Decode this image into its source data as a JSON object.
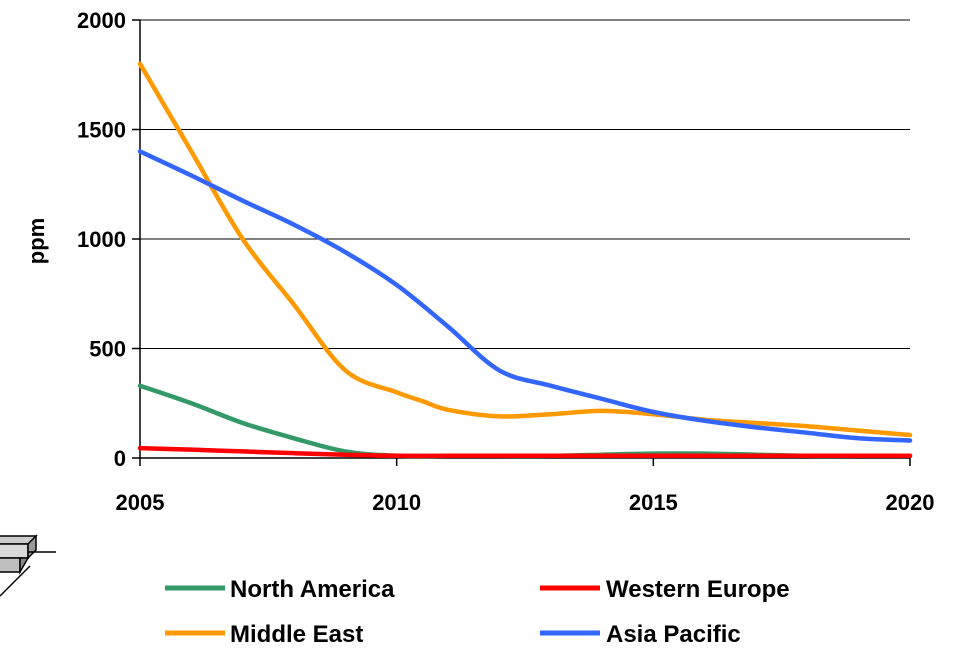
{
  "chart_data": {
    "type": "line",
    "ylabel": "ppm",
    "xlabel": "",
    "xlim": [
      2005,
      2020
    ],
    "ylim": [
      0,
      2000
    ],
    "xticks": [
      "2005",
      "2010",
      "2015",
      "2020"
    ],
    "yticks": [
      "0",
      "500",
      "1000",
      "1500",
      "2000"
    ],
    "grid": "horizontal",
    "legend_position": "bottom",
    "series": [
      {
        "name": "North America",
        "color": "#339966",
        "x": [
          2005,
          2006,
          2007,
          2008,
          2009,
          2010,
          2011,
          2012,
          2013,
          2014,
          2015,
          2016,
          2017,
          2018,
          2019,
          2020
        ],
        "y": [
          330,
          250,
          160,
          90,
          30,
          10,
          10,
          10,
          10,
          15,
          20,
          20,
          15,
          10,
          10,
          10
        ]
      },
      {
        "name": "Western Europe",
        "color": "#ff0000",
        "x": [
          2005,
          2006,
          2007,
          2008,
          2009,
          2010,
          2011,
          2012,
          2013,
          2014,
          2015,
          2016,
          2017,
          2018,
          2019,
          2020
        ],
        "y": [
          45,
          38,
          30,
          22,
          15,
          10,
          10,
          10,
          10,
          10,
          10,
          10,
          10,
          10,
          10,
          10
        ]
      },
      {
        "name": "Middle East",
        "color": "#ff9900",
        "x": [
          2005,
          2006,
          2007,
          2008,
          2009,
          2010,
          2010.5,
          2011,
          2012,
          2013,
          2014,
          2015,
          2016,
          2017,
          2018,
          2019,
          2020
        ],
        "y": [
          1800,
          1400,
          1000,
          700,
          400,
          300,
          260,
          220,
          190,
          200,
          215,
          200,
          175,
          160,
          145,
          125,
          105
        ]
      },
      {
        "name": "Asia Pacific",
        "color": "#3366ff",
        "x": [
          2005,
          2006,
          2007,
          2008,
          2009,
          2010,
          2011,
          2012,
          2013,
          2014,
          2015,
          2016,
          2017,
          2018,
          2019,
          2020
        ],
        "y": [
          1400,
          1290,
          1175,
          1065,
          940,
          790,
          600,
          400,
          330,
          270,
          210,
          170,
          140,
          115,
          90,
          80
        ]
      }
    ]
  }
}
